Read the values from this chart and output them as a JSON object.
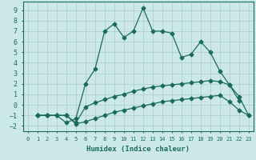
{
  "xlabel": "Humidex (Indice chaleur)",
  "xlim": [
    -0.5,
    23.5
  ],
  "ylim": [
    -2.5,
    9.8
  ],
  "yticks": [
    -2,
    -1,
    0,
    1,
    2,
    3,
    4,
    5,
    6,
    7,
    8,
    9
  ],
  "xticks": [
    0,
    1,
    2,
    3,
    4,
    5,
    6,
    7,
    8,
    9,
    10,
    11,
    12,
    13,
    14,
    15,
    16,
    17,
    18,
    19,
    20,
    21,
    22,
    23
  ],
  "background_color": "#cce8e8",
  "grid_color": "#b0d0d0",
  "line_color": "#1a6b5e",
  "line1_x": [
    1,
    2,
    3,
    4,
    5,
    6,
    7,
    8,
    9,
    10,
    11,
    12,
    13,
    14,
    15,
    16,
    17,
    18,
    19,
    20,
    21,
    22
  ],
  "line1_y": [
    -1,
    -1,
    -1,
    -1.7,
    -1.3,
    2.0,
    3.4,
    7.0,
    7.7,
    6.4,
    7.0,
    9.2,
    7.0,
    7.0,
    6.8,
    4.5,
    4.8,
    6.0,
    5.0,
    3.2,
    1.9,
    0.4
  ],
  "line2_x": [
    1,
    2,
    3,
    4,
    5,
    6,
    7,
    8,
    9,
    10,
    11,
    12,
    13,
    14,
    15,
    16,
    17,
    18,
    19,
    20,
    21,
    22,
    23
  ],
  "line2_y": [
    -1,
    -1,
    -1,
    -1,
    -1.7,
    -0.2,
    0.2,
    0.5,
    0.8,
    1.0,
    1.3,
    1.5,
    1.7,
    1.8,
    1.9,
    2.0,
    2.1,
    2.2,
    2.3,
    2.2,
    1.9,
    0.8,
    -1.0
  ],
  "line3_x": [
    1,
    2,
    3,
    4,
    5,
    6,
    7,
    8,
    9,
    10,
    11,
    12,
    13,
    14,
    15,
    16,
    17,
    18,
    19,
    20,
    21,
    22,
    23
  ],
  "line3_y": [
    -1,
    -1,
    -1,
    -1,
    -1.8,
    -1.6,
    -1.3,
    -1.0,
    -0.7,
    -0.5,
    -0.3,
    -0.1,
    0.1,
    0.3,
    0.4,
    0.5,
    0.6,
    0.7,
    0.8,
    0.9,
    0.3,
    -0.5,
    -1.0
  ]
}
